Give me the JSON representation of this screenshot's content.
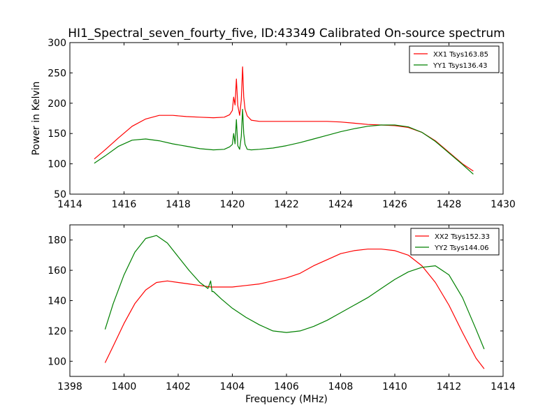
{
  "figure": {
    "title": "HI1_Spectral_seven_fourty_five, ID:43349 Calibrated On-source spectrum"
  },
  "chart_data": [
    {
      "type": "line",
      "xlabel": "",
      "ylabel": "Power in Kelvin",
      "xlim": [
        1414,
        1430
      ],
      "ylim": [
        50,
        300
      ],
      "xticks": [
        1414,
        1416,
        1418,
        1420,
        1422,
        1424,
        1426,
        1428,
        1430
      ],
      "yticks": [
        50,
        100,
        150,
        200,
        250,
        300
      ],
      "legend_position": "top-right",
      "series": [
        {
          "name": "XX1 Tsys163.85",
          "color": "#ff0000",
          "x": [
            1414.9,
            1415.3,
            1415.8,
            1416.3,
            1416.8,
            1417.3,
            1417.8,
            1418.3,
            1418.8,
            1419.3,
            1419.7,
            1419.9,
            1420.0,
            1420.05,
            1420.1,
            1420.15,
            1420.2,
            1420.27,
            1420.33,
            1420.38,
            1420.42,
            1420.47,
            1420.55,
            1420.7,
            1421.0,
            1421.5,
            1422.0,
            1422.5,
            1423.0,
            1423.5,
            1424.0,
            1424.5,
            1425.0,
            1425.5,
            1426.0,
            1426.5,
            1427.0,
            1427.5,
            1428.0,
            1428.5,
            1428.9
          ],
          "y": [
            108,
            123,
            143,
            162,
            174,
            180,
            180,
            178,
            177,
            176,
            177,
            181,
            188,
            210,
            197,
            240,
            196,
            180,
            205,
            260,
            210,
            190,
            179,
            172,
            170,
            170,
            170,
            170,
            170,
            170,
            169,
            167,
            165,
            164,
            163,
            160,
            152,
            138,
            119,
            100,
            88
          ]
        },
        {
          "name": "YY1 Tsys136.43",
          "color": "#008000",
          "x": [
            1414.9,
            1415.3,
            1415.8,
            1416.3,
            1416.8,
            1417.3,
            1417.8,
            1418.3,
            1418.8,
            1419.3,
            1419.7,
            1419.9,
            1420.0,
            1420.05,
            1420.1,
            1420.15,
            1420.2,
            1420.27,
            1420.33,
            1420.38,
            1420.42,
            1420.47,
            1420.55,
            1420.7,
            1421.0,
            1421.5,
            1422.0,
            1422.5,
            1423.0,
            1423.5,
            1424.0,
            1424.5,
            1425.0,
            1425.5,
            1426.0,
            1426.5,
            1427.0,
            1427.5,
            1428.0,
            1428.5,
            1428.9
          ],
          "y": [
            101,
            113,
            129,
            139,
            141,
            138,
            133,
            129,
            125,
            123,
            124,
            128,
            132,
            150,
            133,
            173,
            130,
            124,
            145,
            190,
            150,
            132,
            124,
            123,
            124,
            126,
            130,
            135,
            141,
            147,
            153,
            158,
            162,
            164,
            164,
            161,
            152,
            137,
            118,
            99,
            83
          ]
        }
      ]
    },
    {
      "type": "line",
      "xlabel": "Frequency (MHz)",
      "ylabel": "",
      "xlim": [
        1398,
        1414
      ],
      "ylim": [
        90,
        190
      ],
      "xticks": [
        1398,
        1400,
        1402,
        1404,
        1406,
        1408,
        1410,
        1412,
        1414
      ],
      "yticks": [
        100,
        120,
        140,
        160,
        180
      ],
      "legend_position": "top-right",
      "series": [
        {
          "name": "XX2 Tsys152.33",
          "color": "#ff0000",
          "x": [
            1399.3,
            1399.6,
            1400.0,
            1400.4,
            1400.8,
            1401.2,
            1401.6,
            1402.0,
            1402.4,
            1402.8,
            1403.2,
            1403.6,
            1404.0,
            1404.5,
            1405.0,
            1405.5,
            1406.0,
            1406.5,
            1407.0,
            1407.5,
            1408.0,
            1408.5,
            1409.0,
            1409.5,
            1410.0,
            1410.5,
            1411.0,
            1411.5,
            1412.0,
            1412.5,
            1413.0,
            1413.3
          ],
          "y": [
            99,
            110,
            125,
            138,
            147,
            152,
            153,
            152,
            151,
            150,
            149,
            149,
            149,
            150,
            151,
            153,
            155,
            158,
            163,
            167,
            171,
            173,
            174,
            174,
            173,
            170,
            163,
            152,
            137,
            119,
            102,
            95
          ]
        },
        {
          "name": "YY2 Tsys144.06",
          "color": "#008000",
          "x": [
            1399.3,
            1399.6,
            1400.0,
            1400.4,
            1400.8,
            1401.2,
            1401.6,
            1402.0,
            1402.4,
            1402.8,
            1403.1,
            1403.2,
            1403.25,
            1403.3,
            1403.6,
            1404.0,
            1404.5,
            1405.0,
            1405.5,
            1406.0,
            1406.5,
            1407.0,
            1407.5,
            1408.0,
            1408.5,
            1409.0,
            1409.5,
            1410.0,
            1410.5,
            1411.0,
            1411.5,
            1412.0,
            1412.5,
            1413.0,
            1413.3
          ],
          "y": [
            121,
            138,
            157,
            172,
            181,
            183,
            178,
            169,
            160,
            152,
            148,
            153,
            146,
            146,
            141,
            135,
            129,
            124,
            120,
            119,
            120,
            123,
            127,
            132,
            137,
            142,
            148,
            154,
            159,
            162,
            163,
            157,
            142,
            121,
            108
          ]
        }
      ]
    }
  ]
}
